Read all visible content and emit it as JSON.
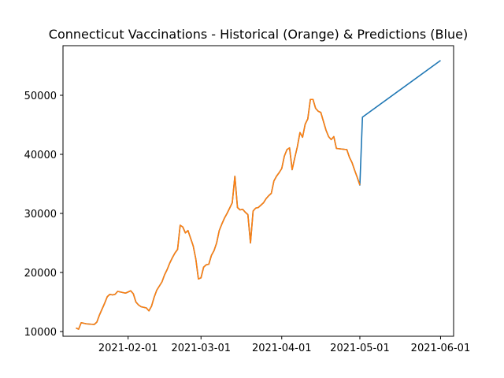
{
  "chart_data": {
    "type": "line",
    "title": "Connecticut Vaccinations - Historical (Orange) & Predictions (Blue)",
    "xlabel": "",
    "ylabel": "",
    "x_axis_type": "date",
    "xlim": [
      "2021-01-07",
      "2021-06-06"
    ],
    "ylim": [
      9200,
      58400
    ],
    "x_ticks": [
      "2021-02-01",
      "2021-03-01",
      "2021-04-01",
      "2021-05-01",
      "2021-06-01"
    ],
    "y_ticks": [
      10000,
      20000,
      30000,
      40000,
      50000
    ],
    "grid": false,
    "legend": "none",
    "series": [
      {
        "color": "#1f77b4",
        "points": [
          [
            "2021-01-12",
            10600
          ],
          [
            "2021-01-13",
            10400
          ],
          [
            "2021-01-14",
            11500
          ],
          [
            "2021-01-16",
            11300
          ],
          [
            "2021-01-19",
            11200
          ],
          [
            "2021-01-20",
            11600
          ],
          [
            "2021-01-21",
            12800
          ],
          [
            "2021-01-23",
            14800
          ],
          [
            "2021-01-24",
            15900
          ],
          [
            "2021-01-25",
            16300
          ],
          [
            "2021-01-26",
            16200
          ],
          [
            "2021-01-27",
            16300
          ],
          [
            "2021-01-28",
            16800
          ],
          [
            "2021-01-30",
            16600
          ],
          [
            "2021-01-31",
            16500
          ],
          [
            "2021-02-02",
            16900
          ],
          [
            "2021-02-03",
            16400
          ],
          [
            "2021-02-04",
            15000
          ],
          [
            "2021-02-05",
            14500
          ],
          [
            "2021-02-06",
            14200
          ],
          [
            "2021-02-08",
            14000
          ],
          [
            "2021-02-09",
            13500
          ],
          [
            "2021-02-10",
            14300
          ],
          [
            "2021-02-11",
            15800
          ],
          [
            "2021-02-12",
            17000
          ],
          [
            "2021-02-14",
            18400
          ],
          [
            "2021-02-15",
            19600
          ],
          [
            "2021-02-16",
            20500
          ],
          [
            "2021-02-17",
            21600
          ],
          [
            "2021-02-18",
            22500
          ],
          [
            "2021-02-19",
            23300
          ],
          [
            "2021-02-20",
            23900
          ],
          [
            "2021-02-21",
            28000
          ],
          [
            "2021-02-22",
            27700
          ],
          [
            "2021-02-23",
            26700
          ],
          [
            "2021-02-24",
            27100
          ],
          [
            "2021-02-25",
            25800
          ],
          [
            "2021-02-26",
            24500
          ],
          [
            "2021-02-27",
            22300
          ],
          [
            "2021-02-28",
            18900
          ],
          [
            "2021-03-01",
            19100
          ],
          [
            "2021-03-02",
            20900
          ],
          [
            "2021-03-03",
            21300
          ],
          [
            "2021-03-04",
            21400
          ],
          [
            "2021-03-05",
            22900
          ],
          [
            "2021-03-06",
            23700
          ],
          [
            "2021-03-07",
            25000
          ],
          [
            "2021-03-08",
            27100
          ],
          [
            "2021-03-09",
            28200
          ],
          [
            "2021-03-10",
            29200
          ],
          [
            "2021-03-11",
            30000
          ],
          [
            "2021-03-12",
            30900
          ],
          [
            "2021-03-13",
            31800
          ],
          [
            "2021-03-14",
            36300
          ],
          [
            "2021-03-15",
            31000
          ],
          [
            "2021-03-16",
            30600
          ],
          [
            "2021-03-17",
            30700
          ],
          [
            "2021-03-18",
            30200
          ],
          [
            "2021-03-19",
            29800
          ],
          [
            "2021-03-20",
            25000
          ],
          [
            "2021-03-21",
            30400
          ],
          [
            "2021-03-22",
            30900
          ],
          [
            "2021-03-23",
            31000
          ],
          [
            "2021-03-24",
            31400
          ],
          [
            "2021-03-25",
            31800
          ],
          [
            "2021-03-26",
            32500
          ],
          [
            "2021-03-27",
            33000
          ],
          [
            "2021-03-28",
            33400
          ],
          [
            "2021-03-29",
            35500
          ],
          [
            "2021-03-30",
            36300
          ],
          [
            "2021-03-31",
            36900
          ],
          [
            "2021-04-01",
            37600
          ],
          [
            "2021-04-02",
            39700
          ],
          [
            "2021-04-03",
            40800
          ],
          [
            "2021-04-04",
            41100
          ],
          [
            "2021-04-05",
            37400
          ],
          [
            "2021-04-06",
            39400
          ],
          [
            "2021-04-07",
            41300
          ],
          [
            "2021-04-08",
            43700
          ],
          [
            "2021-04-09",
            42900
          ],
          [
            "2021-04-10",
            45100
          ],
          [
            "2021-04-11",
            46000
          ],
          [
            "2021-04-12",
            49300
          ],
          [
            "2021-04-13",
            49300
          ],
          [
            "2021-04-14",
            47800
          ],
          [
            "2021-04-15",
            47300
          ],
          [
            "2021-04-16",
            47100
          ],
          [
            "2021-04-17",
            45600
          ],
          [
            "2021-04-18",
            44100
          ],
          [
            "2021-04-19",
            43000
          ],
          [
            "2021-04-20",
            42500
          ],
          [
            "2021-04-21",
            43000
          ],
          [
            "2021-04-22",
            41000
          ],
          [
            "2021-04-24",
            40900
          ],
          [
            "2021-04-26",
            40800
          ],
          [
            "2021-04-27",
            39500
          ],
          [
            "2021-04-28",
            38600
          ],
          [
            "2021-04-29",
            37300
          ],
          [
            "2021-04-30",
            36100
          ],
          [
            "2021-05-01",
            34800
          ],
          [
            "2021-05-02",
            46300
          ],
          [
            "2021-06-01",
            55900
          ]
        ]
      },
      {
        "color": "#ff7f0e",
        "points": [
          [
            "2021-01-12",
            10600
          ],
          [
            "2021-01-13",
            10400
          ],
          [
            "2021-01-14",
            11500
          ],
          [
            "2021-01-16",
            11300
          ],
          [
            "2021-01-19",
            11200
          ],
          [
            "2021-01-20",
            11600
          ],
          [
            "2021-01-21",
            12800
          ],
          [
            "2021-01-23",
            14800
          ],
          [
            "2021-01-24",
            15900
          ],
          [
            "2021-01-25",
            16300
          ],
          [
            "2021-01-26",
            16200
          ],
          [
            "2021-01-27",
            16300
          ],
          [
            "2021-01-28",
            16800
          ],
          [
            "2021-01-30",
            16600
          ],
          [
            "2021-01-31",
            16500
          ],
          [
            "2021-02-02",
            16900
          ],
          [
            "2021-02-03",
            16400
          ],
          [
            "2021-02-04",
            15000
          ],
          [
            "2021-02-05",
            14500
          ],
          [
            "2021-02-06",
            14200
          ],
          [
            "2021-02-08",
            14000
          ],
          [
            "2021-02-09",
            13500
          ],
          [
            "2021-02-10",
            14300
          ],
          [
            "2021-02-11",
            15800
          ],
          [
            "2021-02-12",
            17000
          ],
          [
            "2021-02-14",
            18400
          ],
          [
            "2021-02-15",
            19600
          ],
          [
            "2021-02-16",
            20500
          ],
          [
            "2021-02-17",
            21600
          ],
          [
            "2021-02-18",
            22500
          ],
          [
            "2021-02-19",
            23300
          ],
          [
            "2021-02-20",
            23900
          ],
          [
            "2021-02-21",
            28000
          ],
          [
            "2021-02-22",
            27700
          ],
          [
            "2021-02-23",
            26700
          ],
          [
            "2021-02-24",
            27100
          ],
          [
            "2021-02-25",
            25800
          ],
          [
            "2021-02-26",
            24500
          ],
          [
            "2021-02-27",
            22300
          ],
          [
            "2021-02-28",
            18900
          ],
          [
            "2021-03-01",
            19100
          ],
          [
            "2021-03-02",
            20900
          ],
          [
            "2021-03-03",
            21300
          ],
          [
            "2021-03-04",
            21400
          ],
          [
            "2021-03-05",
            22900
          ],
          [
            "2021-03-06",
            23700
          ],
          [
            "2021-03-07",
            25000
          ],
          [
            "2021-03-08",
            27100
          ],
          [
            "2021-03-09",
            28200
          ],
          [
            "2021-03-10",
            29200
          ],
          [
            "2021-03-11",
            30000
          ],
          [
            "2021-03-12",
            30900
          ],
          [
            "2021-03-13",
            31800
          ],
          [
            "2021-03-14",
            36300
          ],
          [
            "2021-03-15",
            31000
          ],
          [
            "2021-03-16",
            30600
          ],
          [
            "2021-03-17",
            30700
          ],
          [
            "2021-03-18",
            30200
          ],
          [
            "2021-03-19",
            29800
          ],
          [
            "2021-03-20",
            25000
          ],
          [
            "2021-03-21",
            30400
          ],
          [
            "2021-03-22",
            30900
          ],
          [
            "2021-03-23",
            31000
          ],
          [
            "2021-03-24",
            31400
          ],
          [
            "2021-03-25",
            31800
          ],
          [
            "2021-03-26",
            32500
          ],
          [
            "2021-03-27",
            33000
          ],
          [
            "2021-03-28",
            33400
          ],
          [
            "2021-03-29",
            35500
          ],
          [
            "2021-03-30",
            36300
          ],
          [
            "2021-03-31",
            36900
          ],
          [
            "2021-04-01",
            37600
          ],
          [
            "2021-04-02",
            39700
          ],
          [
            "2021-04-03",
            40800
          ],
          [
            "2021-04-04",
            41100
          ],
          [
            "2021-04-05",
            37400
          ],
          [
            "2021-04-06",
            39400
          ],
          [
            "2021-04-07",
            41300
          ],
          [
            "2021-04-08",
            43700
          ],
          [
            "2021-04-09",
            42900
          ],
          [
            "2021-04-10",
            45100
          ],
          [
            "2021-04-11",
            46000
          ],
          [
            "2021-04-12",
            49300
          ],
          [
            "2021-04-13",
            49300
          ],
          [
            "2021-04-14",
            47800
          ],
          [
            "2021-04-15",
            47300
          ],
          [
            "2021-04-16",
            47100
          ],
          [
            "2021-04-17",
            45600
          ],
          [
            "2021-04-18",
            44100
          ],
          [
            "2021-04-19",
            43000
          ],
          [
            "2021-04-20",
            42500
          ],
          [
            "2021-04-21",
            43000
          ],
          [
            "2021-04-22",
            41000
          ],
          [
            "2021-04-24",
            40900
          ],
          [
            "2021-04-26",
            40800
          ],
          [
            "2021-04-27",
            39500
          ],
          [
            "2021-04-28",
            38600
          ],
          [
            "2021-04-29",
            37300
          ],
          [
            "2021-04-30",
            36100
          ],
          [
            "2021-05-01",
            34800
          ]
        ]
      }
    ]
  }
}
